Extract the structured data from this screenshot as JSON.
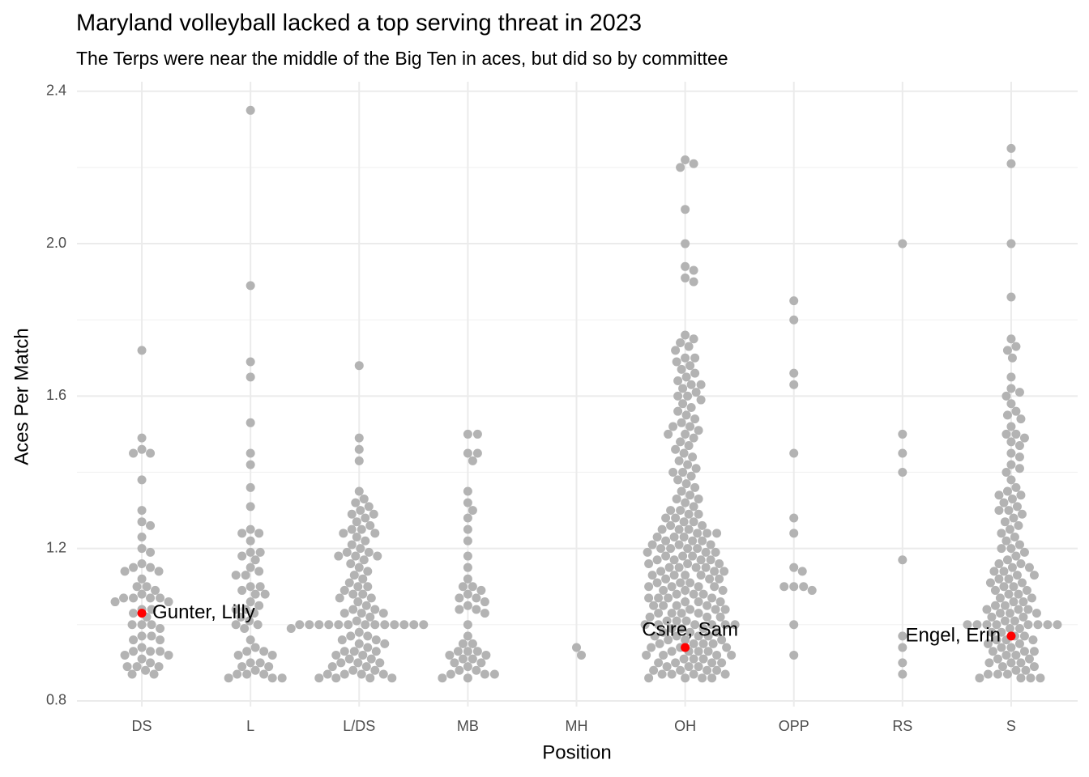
{
  "chart_data": {
    "type": "beeswarm",
    "title": "Maryland volleyball lacked a top serving threat in 2023",
    "subtitle": "The Terps were near the middle of the Big Ten in aces, but did so by committee",
    "x_label": "Position",
    "y_label": "Aces Per Match",
    "categories": [
      "DS",
      "L",
      "L/DS",
      "MB",
      "MH",
      "OH",
      "OPP",
      "RS",
      "S"
    ],
    "color": "#b3b3b3",
    "highlight_color": "#ff0000",
    "ylim": [
      0.785,
      2.425
    ],
    "yticks": [
      {
        "value": 0.8,
        "label": "0.8"
      },
      {
        "value": 1.2,
        "label": "1.2"
      },
      {
        "value": 1.6,
        "label": "1.6"
      },
      {
        "value": 2.0,
        "label": "2.0"
      },
      {
        "value": 2.4,
        "label": "2.4"
      }
    ],
    "yminorticks": [
      1.0,
      1.4,
      1.8,
      2.2
    ],
    "grid": true,
    "values": [
      [
        1.72,
        1.49,
        1.46,
        1.45,
        1.45,
        1.38,
        1.3,
        1.27,
        1.26,
        1.23,
        1.2,
        1.19,
        1.16,
        1.15,
        1.15,
        1.14,
        1.14,
        1.12,
        1.1,
        1.1,
        1.09,
        1.08,
        1.07,
        1.07,
        1.07,
        1.07,
        1.06,
        1.06,
        1.04,
        1.04,
        1.03,
        1.02,
        1.0,
        1.0,
        1.0,
        0.99,
        0.97,
        0.97,
        0.96,
        0.96,
        0.94,
        0.93,
        0.93,
        0.93,
        0.92,
        0.92,
        0.91,
        0.9,
        0.89,
        0.89,
        0.89,
        0.88,
        0.87,
        0.87
      ],
      [
        2.35,
        1.89,
        1.69,
        1.65,
        1.53,
        1.45,
        1.42,
        1.36,
        1.31,
        1.25,
        1.24,
        1.24,
        1.22,
        1.19,
        1.19,
        1.18,
        1.17,
        1.15,
        1.14,
        1.13,
        1.13,
        1.1,
        1.1,
        1.09,
        1.08,
        1.08,
        1.06,
        1.05,
        1.04,
        1.04,
        1.03,
        1.02,
        1.01,
        1.0,
        1.0,
        0.99,
        0.96,
        0.94,
        0.93,
        0.93,
        0.92,
        0.92,
        0.9,
        0.9,
        0.89,
        0.89,
        0.88,
        0.87,
        0.87,
        0.87,
        0.86,
        0.86,
        0.86
      ],
      [
        1.68,
        1.49,
        1.46,
        1.43,
        1.35,
        1.33,
        1.32,
        1.31,
        1.3,
        1.29,
        1.29,
        1.28,
        1.27,
        1.26,
        1.25,
        1.25,
        1.24,
        1.24,
        1.23,
        1.22,
        1.21,
        1.2,
        1.19,
        1.19,
        1.18,
        1.18,
        1.18,
        1.17,
        1.16,
        1.15,
        1.14,
        1.13,
        1.12,
        1.11,
        1.1,
        1.1,
        1.09,
        1.08,
        1.08,
        1.07,
        1.07,
        1.06,
        1.05,
        1.04,
        1.04,
        1.03,
        1.03,
        1.03,
        1.02,
        1.01,
        1.0,
        1.0,
        1.0,
        1.0,
        1.0,
        1.0,
        1.0,
        1.0,
        1.0,
        1.0,
        1.0,
        1.0,
        1.0,
        0.99,
        0.98,
        0.97,
        0.97,
        0.96,
        0.96,
        0.95,
        0.95,
        0.94,
        0.93,
        0.93,
        0.93,
        0.92,
        0.92,
        0.91,
        0.91,
        0.9,
        0.9,
        0.9,
        0.89,
        0.89,
        0.88,
        0.88,
        0.87,
        0.87,
        0.87,
        0.87,
        0.86,
        0.86,
        0.86,
        0.86
      ],
      [
        1.5,
        1.5,
        1.45,
        1.45,
        1.43,
        1.35,
        1.32,
        1.3,
        1.28,
        1.25,
        1.22,
        1.18,
        1.15,
        1.12,
        1.1,
        1.1,
        1.09,
        1.08,
        1.07,
        1.07,
        1.06,
        1.05,
        1.04,
        1.04,
        1.03,
        1.0,
        0.97,
        0.95,
        0.95,
        0.93,
        0.93,
        0.93,
        0.92,
        0.92,
        0.91,
        0.91,
        0.9,
        0.9,
        0.89,
        0.88,
        0.88,
        0.87,
        0.87,
        0.87,
        0.86,
        0.86
      ],
      [
        0.94,
        0.92
      ],
      [
        2.22,
        2.21,
        2.2,
        2.09,
        2.0,
        1.94,
        1.93,
        1.91,
        1.9,
        1.76,
        1.75,
        1.74,
        1.73,
        1.72,
        1.7,
        1.7,
        1.69,
        1.68,
        1.67,
        1.66,
        1.65,
        1.64,
        1.63,
        1.63,
        1.62,
        1.61,
        1.6,
        1.6,
        1.59,
        1.58,
        1.57,
        1.56,
        1.55,
        1.54,
        1.53,
        1.52,
        1.52,
        1.51,
        1.5,
        1.5,
        1.49,
        1.48,
        1.47,
        1.46,
        1.45,
        1.44,
        1.43,
        1.42,
        1.41,
        1.4,
        1.4,
        1.39,
        1.38,
        1.37,
        1.36,
        1.35,
        1.34,
        1.33,
        1.33,
        1.32,
        1.31,
        1.3,
        1.3,
        1.29,
        1.29,
        1.28,
        1.28,
        1.27,
        1.27,
        1.26,
        1.26,
        1.25,
        1.25,
        1.25,
        1.24,
        1.24,
        1.24,
        1.23,
        1.23,
        1.23,
        1.22,
        1.22,
        1.22,
        1.21,
        1.21,
        1.21,
        1.2,
        1.2,
        1.2,
        1.2,
        1.19,
        1.19,
        1.19,
        1.18,
        1.18,
        1.18,
        1.17,
        1.17,
        1.17,
        1.17,
        1.16,
        1.16,
        1.16,
        1.15,
        1.15,
        1.15,
        1.15,
        1.14,
        1.14,
        1.14,
        1.13,
        1.13,
        1.13,
        1.13,
        1.12,
        1.12,
        1.12,
        1.11,
        1.11,
        1.11,
        1.1,
        1.1,
        1.1,
        1.1,
        1.09,
        1.09,
        1.09,
        1.08,
        1.08,
        1.08,
        1.07,
        1.07,
        1.07,
        1.07,
        1.06,
        1.06,
        1.06,
        1.05,
        1.05,
        1.05,
        1.05,
        1.04,
        1.04,
        1.04,
        1.03,
        1.03,
        1.03,
        1.03,
        1.02,
        1.02,
        1.02,
        1.01,
        1.01,
        1.01,
        1.0,
        1.0,
        1.0,
        1.0,
        1.0,
        1.0,
        0.99,
        0.99,
        0.99,
        0.98,
        0.98,
        0.98,
        0.97,
        0.97,
        0.97,
        0.97,
        0.96,
        0.96,
        0.96,
        0.95,
        0.95,
        0.95,
        0.95,
        0.94,
        0.94,
        0.94,
        0.93,
        0.93,
        0.93,
        0.93,
        0.92,
        0.92,
        0.92,
        0.92,
        0.91,
        0.91,
        0.91,
        0.9,
        0.9,
        0.9,
        0.9,
        0.89,
        0.89,
        0.89,
        0.88,
        0.88,
        0.88,
        0.88,
        0.87,
        0.87,
        0.87,
        0.87,
        0.86,
        0.86,
        0.86,
        0.86
      ],
      [
        1.85,
        1.8,
        1.66,
        1.63,
        1.45,
        1.28,
        1.24,
        1.15,
        1.14,
        1.1,
        1.1,
        1.1,
        1.09,
        1.0,
        0.92
      ],
      [
        2.0,
        1.5,
        1.45,
        1.4,
        1.17,
        0.97,
        0.94,
        0.9,
        0.87
      ],
      [
        2.25,
        2.21,
        2.0,
        1.86,
        1.75,
        1.73,
        1.72,
        1.7,
        1.65,
        1.62,
        1.61,
        1.6,
        1.58,
        1.56,
        1.55,
        1.54,
        1.52,
        1.5,
        1.5,
        1.49,
        1.48,
        1.47,
        1.45,
        1.44,
        1.42,
        1.41,
        1.4,
        1.38,
        1.36,
        1.35,
        1.34,
        1.34,
        1.33,
        1.32,
        1.31,
        1.3,
        1.3,
        1.29,
        1.28,
        1.27,
        1.26,
        1.25,
        1.24,
        1.23,
        1.22,
        1.21,
        1.2,
        1.2,
        1.19,
        1.18,
        1.17,
        1.16,
        1.16,
        1.15,
        1.15,
        1.14,
        1.14,
        1.13,
        1.13,
        1.12,
        1.12,
        1.11,
        1.11,
        1.1,
        1.1,
        1.09,
        1.09,
        1.08,
        1.08,
        1.07,
        1.07,
        1.06,
        1.06,
        1.05,
        1.05,
        1.04,
        1.04,
        1.04,
        1.03,
        1.03,
        1.03,
        1.02,
        1.02,
        1.01,
        1.01,
        1.0,
        1.0,
        1.0,
        1.0,
        1.0,
        1.0,
        1.0,
        1.0,
        0.99,
        0.99,
        0.98,
        0.98,
        0.97,
        0.97,
        0.96,
        0.96,
        0.96,
        0.95,
        0.95,
        0.94,
        0.94,
        0.93,
        0.93,
        0.93,
        0.92,
        0.92,
        0.91,
        0.91,
        0.9,
        0.9,
        0.9,
        0.89,
        0.89,
        0.88,
        0.88,
        0.87,
        0.87,
        0.87,
        0.86,
        0.86,
        0.86,
        0.86
      ]
    ],
    "highlights": [
      {
        "label": "Gunter, Lilly",
        "category": "DS",
        "value": 1.03
      },
      {
        "label": "Csire, Sam",
        "category": "OH",
        "value": 0.94
      },
      {
        "label": "Engel, Erin",
        "category": "S",
        "value": 0.97
      }
    ]
  }
}
